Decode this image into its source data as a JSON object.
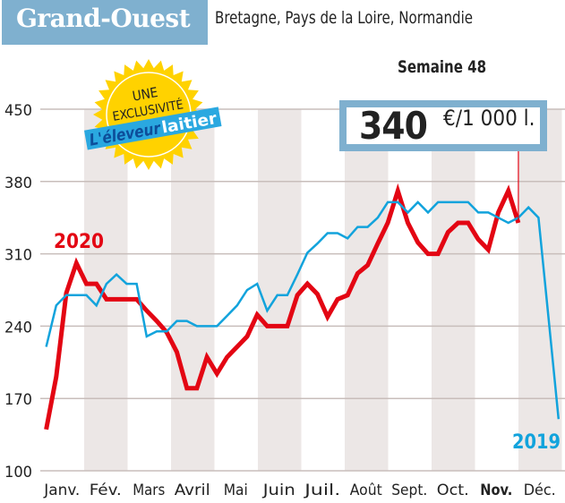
{
  "header": {
    "title": "Grand-Ouest",
    "subtitle": "Bretagne, Pays de la Loire, Normandie"
  },
  "badge": {
    "line1": "UNE",
    "line2": "EXCLUSIVITÉ",
    "brand_part1": "L'éleveur",
    "brand_part2": "laitier"
  },
  "highlight": {
    "week_label": "Semaine 48",
    "value": "340",
    "unit": "€/1 000 l."
  },
  "colors": {
    "series_2020": "#e30613",
    "series_2019": "#12a3dc",
    "header_bg": "#7fb0cf",
    "band": "#ece7e6",
    "badge": "#ffd200"
  },
  "chart_data": {
    "type": "line",
    "ylim": [
      100,
      450
    ],
    "y_ticks": [
      "100",
      "170",
      "240",
      "310",
      "380",
      "450"
    ],
    "x_unit_note_hidden": null,
    "months": [
      "Janv.",
      "Fév.",
      "Mars",
      "Avril",
      "Mai",
      "Juin",
      "Juil.",
      "Août",
      "Sept.",
      "Oct.",
      "Nov.",
      "Déc."
    ],
    "highlight_month": "Nov.",
    "grid": true,
    "series": [
      {
        "name": "2020",
        "color": "#e30613",
        "weeks": [
          1,
          2,
          3,
          4,
          5,
          6,
          7,
          8,
          9,
          10,
          11,
          12,
          13,
          14,
          15,
          16,
          17,
          18,
          19,
          20,
          21,
          22,
          23,
          24,
          25,
          26,
          27,
          28,
          29,
          30,
          31,
          32,
          33,
          34,
          35,
          36,
          37,
          38,
          39,
          40,
          41,
          42,
          43,
          44,
          45,
          46,
          47,
          48
        ],
        "values": [
          140,
          191,
          272,
          301,
          281,
          281,
          266,
          266,
          266,
          266,
          255,
          245,
          234,
          215,
          180,
          180,
          210,
          194,
          210,
          220,
          230,
          251,
          240,
          240,
          240,
          270,
          281,
          271,
          249,
          266,
          270,
          291,
          299,
          320,
          340,
          371,
          340,
          321,
          310,
          310,
          331,
          340,
          340,
          324,
          314,
          350,
          371,
          340
        ]
      },
      {
        "name": "2019",
        "color": "#12a3dc",
        "weeks": [
          1,
          2,
          3,
          4,
          5,
          6,
          7,
          8,
          9,
          10,
          11,
          12,
          13,
          14,
          15,
          16,
          17,
          18,
          19,
          20,
          21,
          22,
          23,
          24,
          25,
          26,
          27,
          28,
          29,
          30,
          31,
          32,
          33,
          34,
          35,
          36,
          37,
          38,
          39,
          40,
          41,
          42,
          43,
          44,
          45,
          46,
          47,
          48,
          49,
          50,
          51,
          52
        ],
        "values": [
          220,
          260,
          270,
          270,
          270,
          260,
          281,
          290,
          281,
          281,
          230,
          235,
          235,
          245,
          245,
          240,
          240,
          240,
          250,
          260,
          275,
          281,
          255,
          270,
          270,
          290,
          311,
          320,
          330,
          330,
          325,
          336,
          336,
          345,
          360,
          360,
          350,
          360,
          350,
          360,
          360,
          360,
          360,
          350,
          350,
          345,
          340,
          345,
          355,
          345,
          248,
          150
        ]
      }
    ]
  }
}
